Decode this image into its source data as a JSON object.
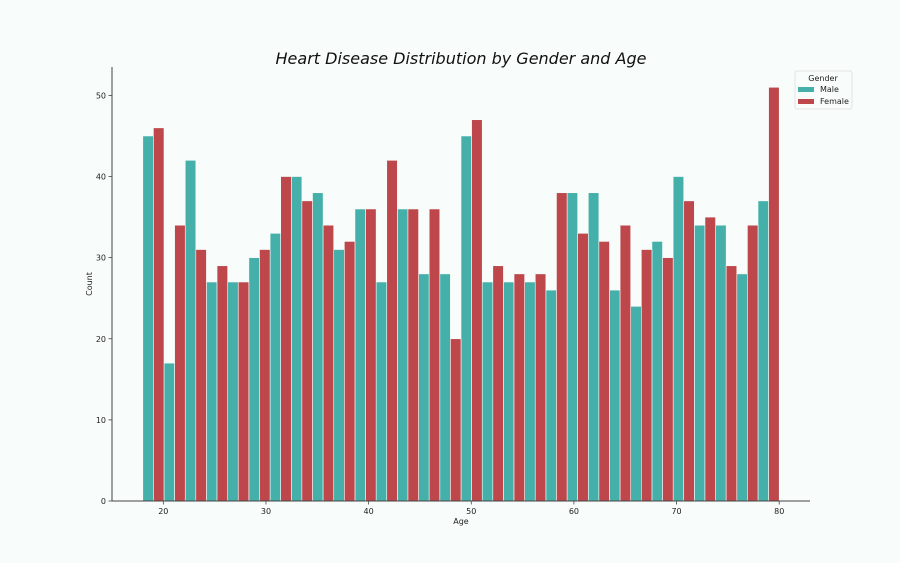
{
  "chart_data": {
    "type": "bar",
    "title": "Heart Disease Distribution by Gender and Age",
    "xlabel": "Age",
    "ylabel": "Count",
    "xlim": [
      15,
      83
    ],
    "ylim": [
      0,
      53.5
    ],
    "xticks": [
      20,
      30,
      40,
      50,
      60,
      70,
      80
    ],
    "yticks": [
      0,
      10,
      20,
      30,
      40,
      50
    ],
    "bin_start": 18,
    "bin_end": 80,
    "bins": 30,
    "legend": {
      "title": "Gender",
      "position": "top-right"
    },
    "series": [
      {
        "name": "Male",
        "color": "#45b0aa",
        "values": [
          45,
          17,
          42,
          27,
          27,
          30,
          33,
          40,
          38,
          31,
          36,
          27,
          36,
          28,
          28,
          45,
          27,
          27,
          27,
          26,
          38,
          38,
          26,
          24,
          32,
          40,
          34,
          34,
          28,
          37
        ]
      },
      {
        "name": "Female",
        "color": "#bd474a",
        "values": [
          46,
          34,
          31,
          29,
          27,
          31,
          40,
          37,
          34,
          32,
          36,
          42,
          36,
          36,
          20,
          47,
          29,
          28,
          28,
          38,
          33,
          32,
          34,
          31,
          30,
          37,
          35,
          29,
          34,
          51
        ]
      }
    ],
    "grid": false
  }
}
